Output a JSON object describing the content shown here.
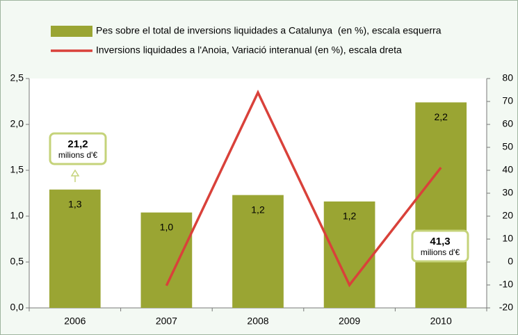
{
  "chart_data": {
    "type": "bar",
    "categories": [
      "2006",
      "2007",
      "2008",
      "2009",
      "2010"
    ],
    "series": [
      {
        "name": "Pes sobre el total de inversions liquidades a Catalunya  (en %), escala esquerra",
        "type": "bar",
        "color": "#9aa533",
        "values": [
          1.29,
          1.04,
          1.23,
          1.16,
          2.24
        ],
        "value_labels": [
          "1,3",
          "1,0",
          "1,2",
          "1,2",
          "2,2"
        ]
      },
      {
        "name": "Inversions liquidades a l'Anoia, Variació interanual (en %), escala dreta",
        "type": "line",
        "color": "#d9413a",
        "axis": "y2",
        "values": [
          null,
          -10.3,
          73.9,
          -10.0,
          41.2
        ]
      }
    ],
    "ylim": [
      0,
      2.5
    ],
    "yticks": [
      {
        "value": 0,
        "label": "0,0"
      },
      {
        "value": 0.5,
        "label": "0,5"
      },
      {
        "value": 1,
        "label": "1,0"
      },
      {
        "value": 1.5,
        "label": "1,5"
      },
      {
        "value": 2,
        "label": "2,0"
      },
      {
        "value": 2.5,
        "label": "2,5"
      }
    ],
    "y2lim": [
      -20,
      80
    ],
    "y2ticks": [
      -20,
      -10,
      0,
      10,
      20,
      30,
      40,
      50,
      60,
      70,
      80
    ],
    "annotations": [
      [
        "21,2",
        "milions d'€"
      ],
      [
        "41,3",
        "milions d'€"
      ]
    ],
    "grid": false
  }
}
